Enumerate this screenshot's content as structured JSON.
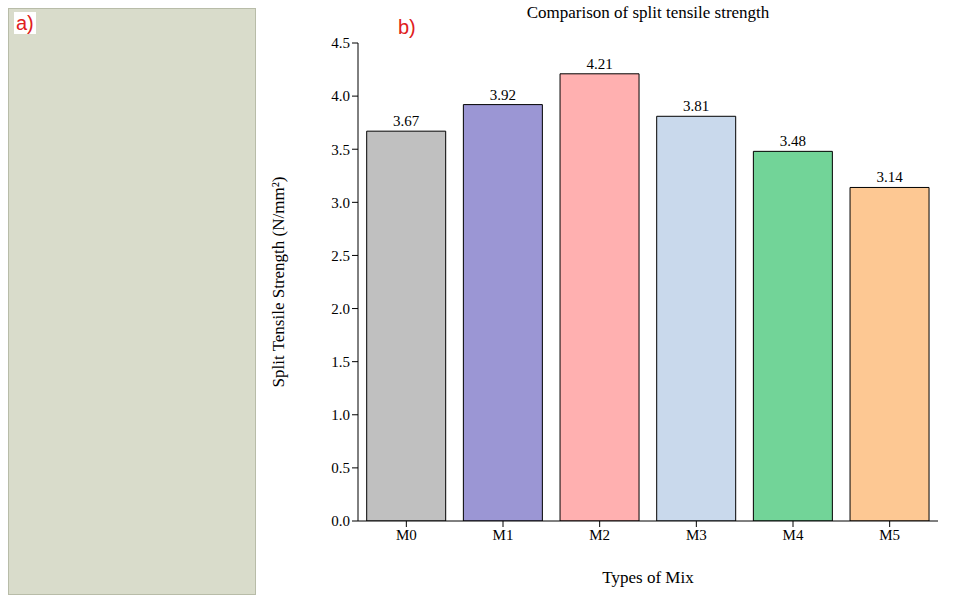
{
  "panel_labels": [
    "a)",
    "b)"
  ],
  "chart_data": {
    "type": "bar",
    "title": "Comparison of split tensile strength",
    "x_label": "Types of Mix",
    "y_label": "Split Tensile Strength (N/mm²)",
    "categories": [
      "M0",
      "M1",
      "M2",
      "M3",
      "M4",
      "M5"
    ],
    "values": [
      3.67,
      3.92,
      4.21,
      3.81,
      3.48,
      3.14
    ],
    "colors": [
      "#c0c0c0",
      "#9b96d4",
      "#ffb0b0",
      "#c9d9ec",
      "#72d498",
      "#fdc893"
    ],
    "ylim": [
      0,
      4.5
    ],
    "yticks": [
      {
        "value": 0,
        "label": "0.0"
      },
      {
        "value": 0.5,
        "label": "0.5"
      },
      {
        "value": 1,
        "label": "1.0"
      },
      {
        "value": 1.5,
        "label": "1.5"
      },
      {
        "value": 2,
        "label": "2.0"
      },
      {
        "value": 2.5,
        "label": "2.5"
      },
      {
        "value": 3,
        "label": "3.0"
      },
      {
        "value": 3.5,
        "label": "3.5"
      },
      {
        "value": 4,
        "label": "4.0"
      },
      {
        "value": 4.5,
        "label": "4.5"
      }
    ],
    "grid": false,
    "data_labels": true
  }
}
